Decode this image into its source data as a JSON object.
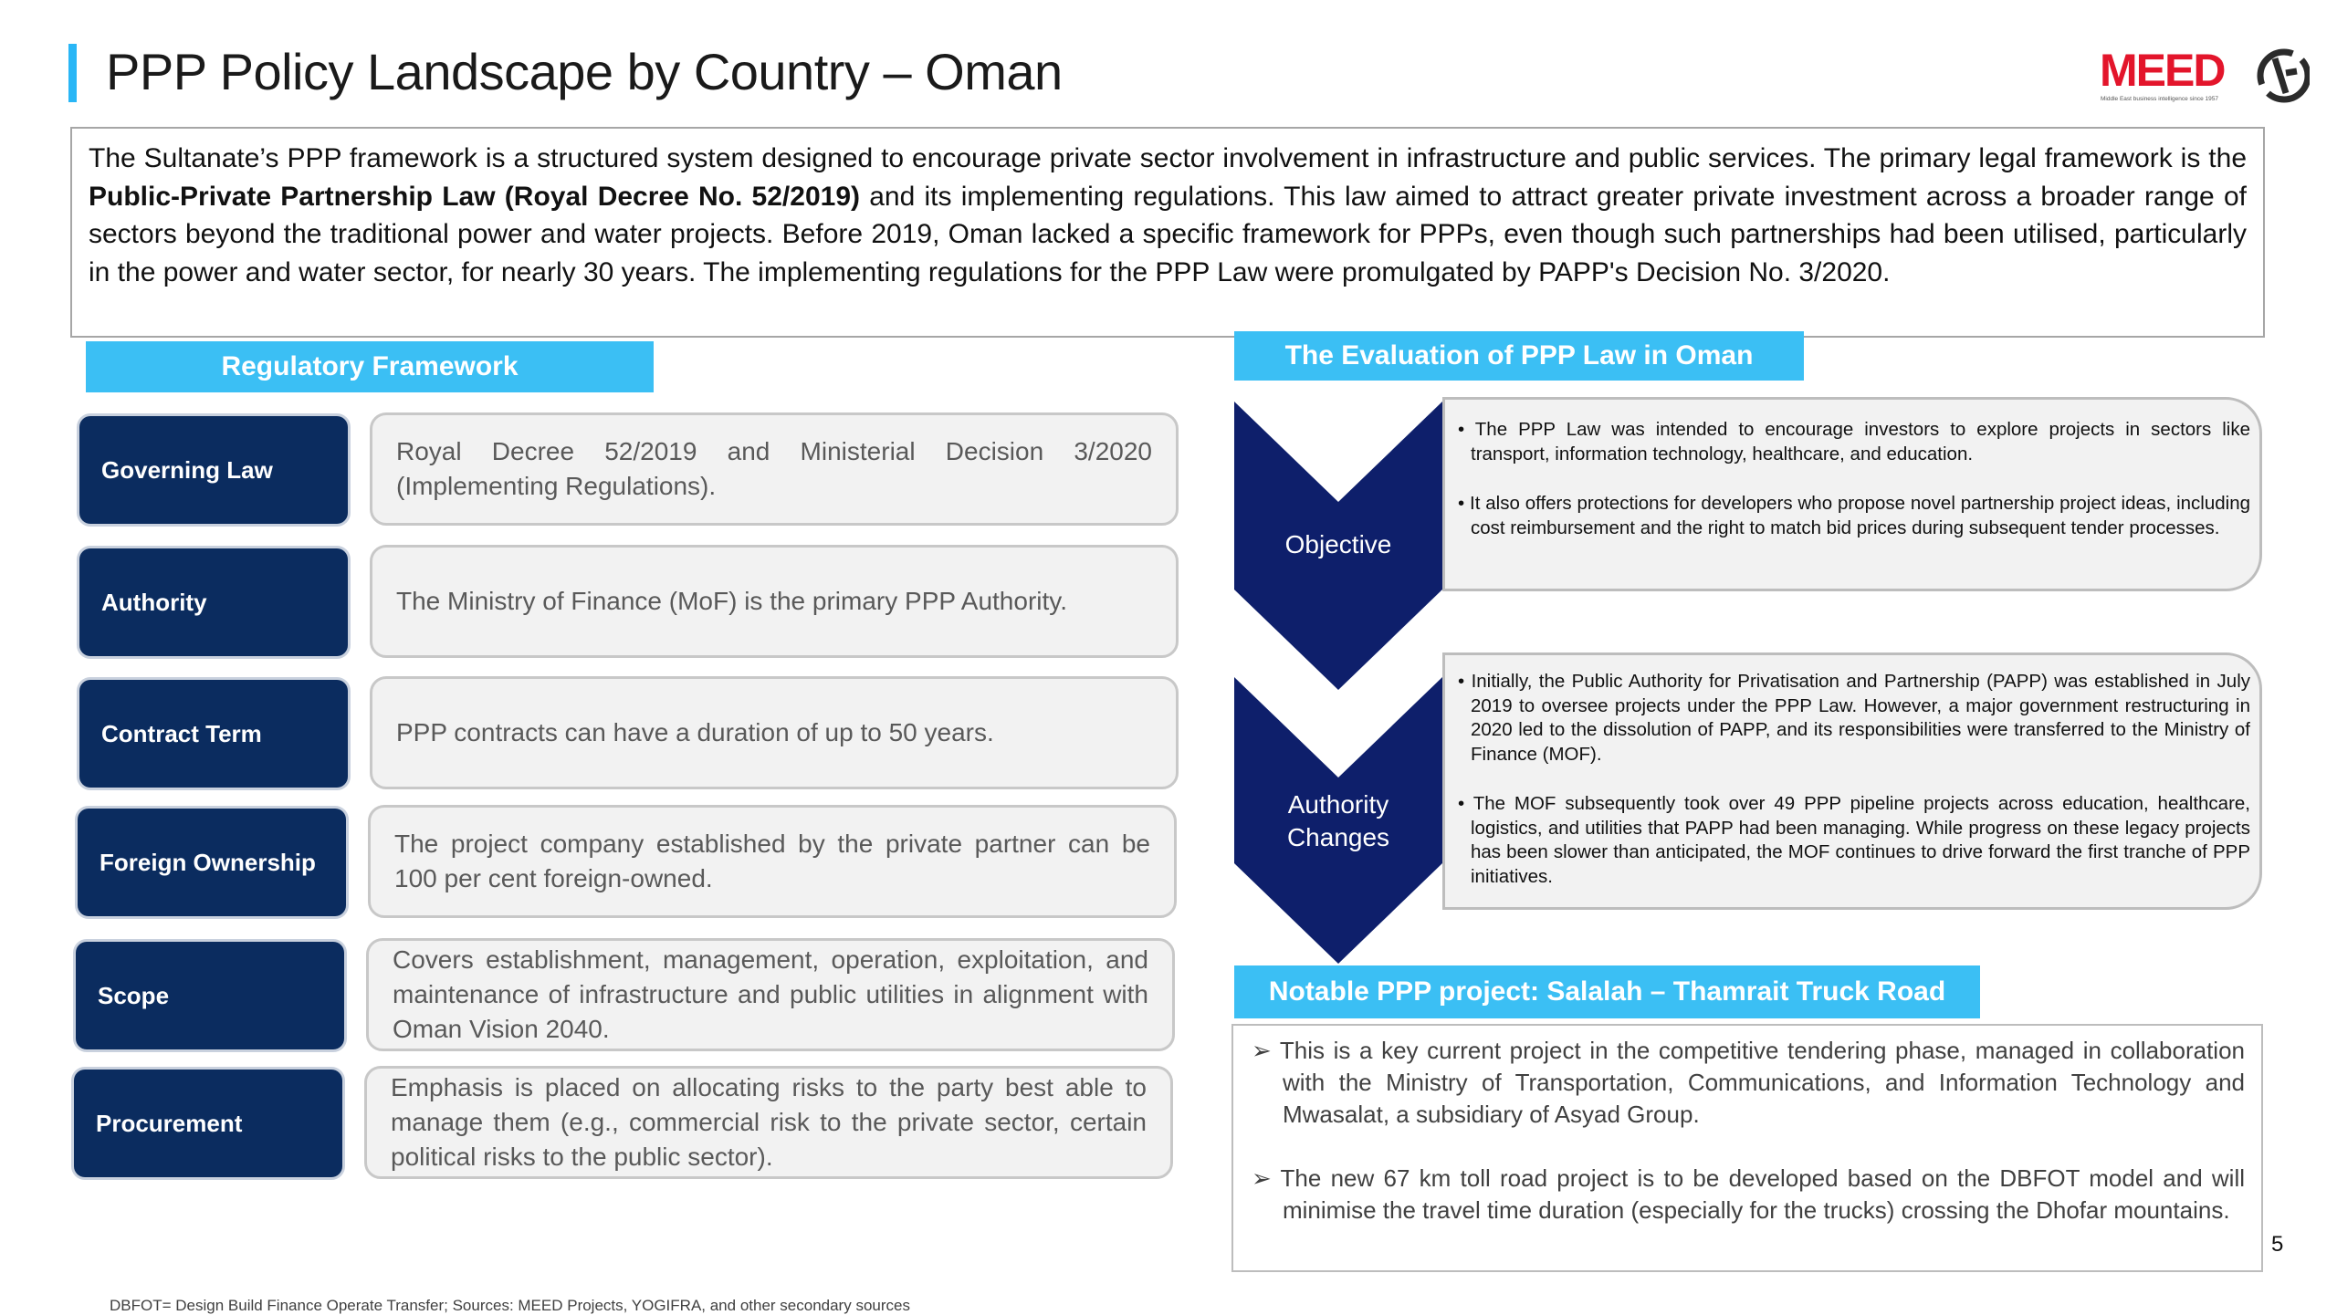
{
  "title": "PPP Policy Landscape by Country – Oman",
  "logo": {
    "text": "MEED",
    "tagline": "Middle East business intelligence since 1957"
  },
  "intro": {
    "part1": "The Sultanate’s PPP framework is a structured system designed to encourage private sector involvement in infrastructure and public services. The primary legal framework is the ",
    "bold": "Public-Private Partnership Law (Royal Decree No. 52/2019)",
    "part2": " and its implementing regulations. This law aimed to attract greater private investment across a broader range of sectors beyond the traditional power and water projects. Before 2019, Oman lacked a specific framework for PPPs, even though such partnerships had been utilised, particularly in the power and water sector, for nearly 30 years. The implementing regulations for the PPP Law were promulgated by PAPP's Decision No. 3/2020."
  },
  "regulatory": {
    "header": "Regulatory Framework",
    "rows": [
      {
        "label": "Governing Law",
        "text": "Royal Decree 52/2019 and Ministerial Decision 3/2020 (Implementing Regulations)."
      },
      {
        "label": "Authority",
        "text": "The Ministry of Finance (MoF) is the primary PPP Authority."
      },
      {
        "label": "Contract Term",
        "text": "PPP contracts can have a duration of up to 50 years."
      },
      {
        "label": "Foreign Ownership",
        "text": "The project company established by the private partner can be 100 per cent foreign-owned."
      },
      {
        "label": "Scope",
        "text": "Covers establishment, management, operation, exploitation, and maintenance of infrastructure and public utilities in alignment with Oman Vision 2040."
      },
      {
        "label": "Procurement",
        "text": "Emphasis is placed on allocating risks to the party best able to manage them (e.g., commercial risk to the private sector, certain political risks to the public sector)."
      }
    ]
  },
  "evaluation": {
    "header": "The Evaluation of PPP Law in Oman",
    "objective": {
      "label": "Objective",
      "bullets": [
        "The PPP Law was intended to encourage investors to explore projects in sectors like transport, information technology, healthcare, and education.",
        "It also offers protections for developers who propose novel partnership project ideas, including cost reimbursement and the right to match bid prices during subsequent tender processes."
      ]
    },
    "authority": {
      "label_line1": "Authority",
      "label_line2": "Changes",
      "bullets": [
        "Initially, the Public Authority for Privatisation and Partnership (PAPP) was established in July 2019 to oversee projects under the PPP Law. However, a major government restructuring in 2020 led to the dissolution of PAPP, and its responsibilities were transferred to the Ministry of Finance (MOF).",
        "The MOF subsequently took over 49 PPP pipeline projects across education, healthcare, logistics, and utilities that PAPP had been managing. While progress on these legacy projects has been slower than anticipated, the MOF continues to drive forward the first tranche of PPP initiatives."
      ]
    }
  },
  "notable": {
    "header": "Notable PPP project: Salalah – Thamrait Truck Road",
    "bullets": [
      "This is a key current project in the competitive tendering phase, managed in collaboration with the Ministry of Transportation, Communications, and Information Technology and Mwasalat, a subsidiary of Asyad Group.",
      "The new 67 km toll road project is to be developed based on the DBFOT model and will minimise the travel time duration (especially for the trucks) crossing the Dhofar mountains."
    ]
  },
  "page_number": "5",
  "footnote": "DBFOT= Design Build Finance Operate Transfer; Sources: MEED Projects, YOGIFRA, and other secondary sources",
  "colors": {
    "accent": "#3bbff4",
    "navy": "#0b2c5f",
    "chevron": "#0e1f6b",
    "brand_red": "#e3152b"
  }
}
